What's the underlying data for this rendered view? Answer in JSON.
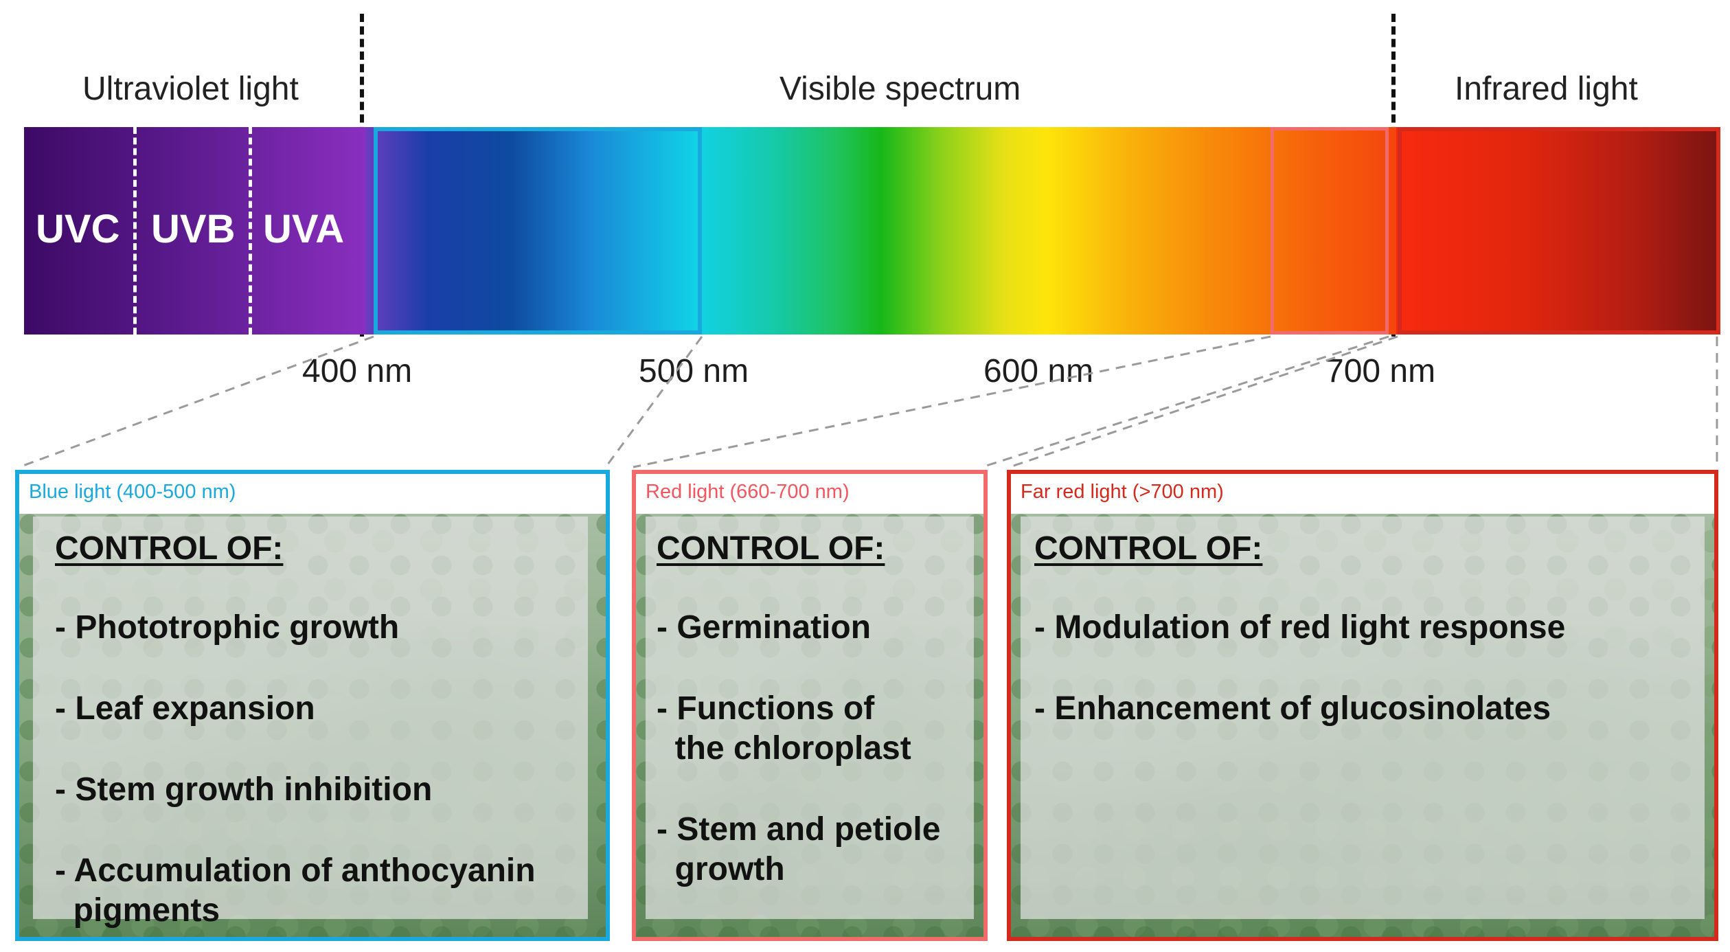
{
  "spectrum": {
    "regions": {
      "ultraviolet": "Ultraviolet light",
      "visible": "Visible spectrum",
      "infrared": "Infrared light"
    },
    "bands": [
      "UVC",
      "UVB",
      "UVA"
    ],
    "wavelength_labels": [
      "400 nm",
      "500 nm",
      "600 nm",
      "700 nm"
    ],
    "colors": {
      "blue_frame": "#1aa9dc",
      "red_frame": "#f26b6b",
      "far_red_frame": "#d42a1e"
    }
  },
  "panels": {
    "blue": {
      "title": "Blue light (400-500 nm)",
      "heading": "CONTROL OF:",
      "items": [
        "- Phototrophic growth",
        "- Leaf expansion",
        "- Stem growth inhibition",
        "- Accumulation of anthocyanin",
        "  pigments"
      ]
    },
    "red": {
      "title": "Red light (660-700 nm)",
      "heading": "CONTROL OF:",
      "items": [
        "- Germination",
        "- Functions of",
        "  the chloroplast",
        "- Stem and petiole",
        "  growth"
      ]
    },
    "far_red": {
      "title": "Far red light (>700 nm)",
      "heading": "CONTROL OF:",
      "items": [
        "- Modulation of red light response",
        "- Enhancement of glucosinolates"
      ]
    }
  }
}
